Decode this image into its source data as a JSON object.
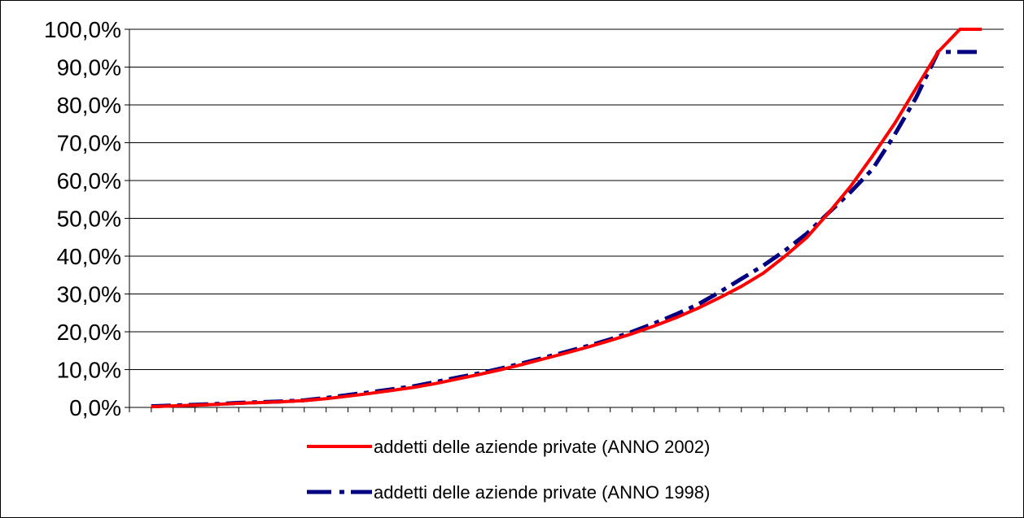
{
  "chart_data": {
    "type": "line",
    "title": "",
    "xlabel": "",
    "ylabel": "",
    "ylim": [
      0,
      100
    ],
    "yticks": [
      "0,0%",
      "10,0%",
      "20,0%",
      "30,0%",
      "40,0%",
      "50,0%",
      "60,0%",
      "70,0%",
      "80,0%",
      "90,0%",
      "100,0%"
    ],
    "x_categories_count": 39,
    "grid": true,
    "legend_position": "bottom",
    "series": [
      {
        "name": "addetti delle aziende private (ANNO 2002)",
        "color": "#ff0000",
        "style": "solid",
        "values": [
          0.2,
          0.4,
          0.6,
          0.8,
          1.1,
          1.3,
          1.5,
          1.8,
          2.3,
          3.0,
          3.7,
          4.5,
          5.3,
          6.3,
          7.5,
          8.7,
          10.0,
          11.4,
          12.9,
          14.4,
          16.0,
          17.7,
          19.5,
          21.5,
          23.7,
          26.2,
          29.0,
          32.0,
          35.5,
          40.0,
          45.0,
          51.5,
          58.5,
          66.5,
          75.0,
          84.5,
          94.0,
          100.0,
          100.0
        ]
      },
      {
        "name": "addetti delle aziende private (ANNO 1998)",
        "color": "#000080",
        "style": "dashed",
        "values": [
          0.3,
          0.5,
          0.7,
          0.9,
          1.2,
          1.4,
          1.6,
          1.9,
          2.5,
          3.3,
          4.0,
          4.8,
          5.6,
          6.7,
          7.9,
          9.0,
          10.3,
          11.7,
          13.2,
          14.7,
          16.3,
          18.0,
          20.0,
          22.2,
          24.6,
          27.2,
          30.5,
          34.0,
          37.5,
          41.5,
          46.0,
          51.5,
          57.0,
          63.0,
          72.0,
          82.0,
          94.0,
          94.0,
          94.0
        ]
      }
    ]
  }
}
